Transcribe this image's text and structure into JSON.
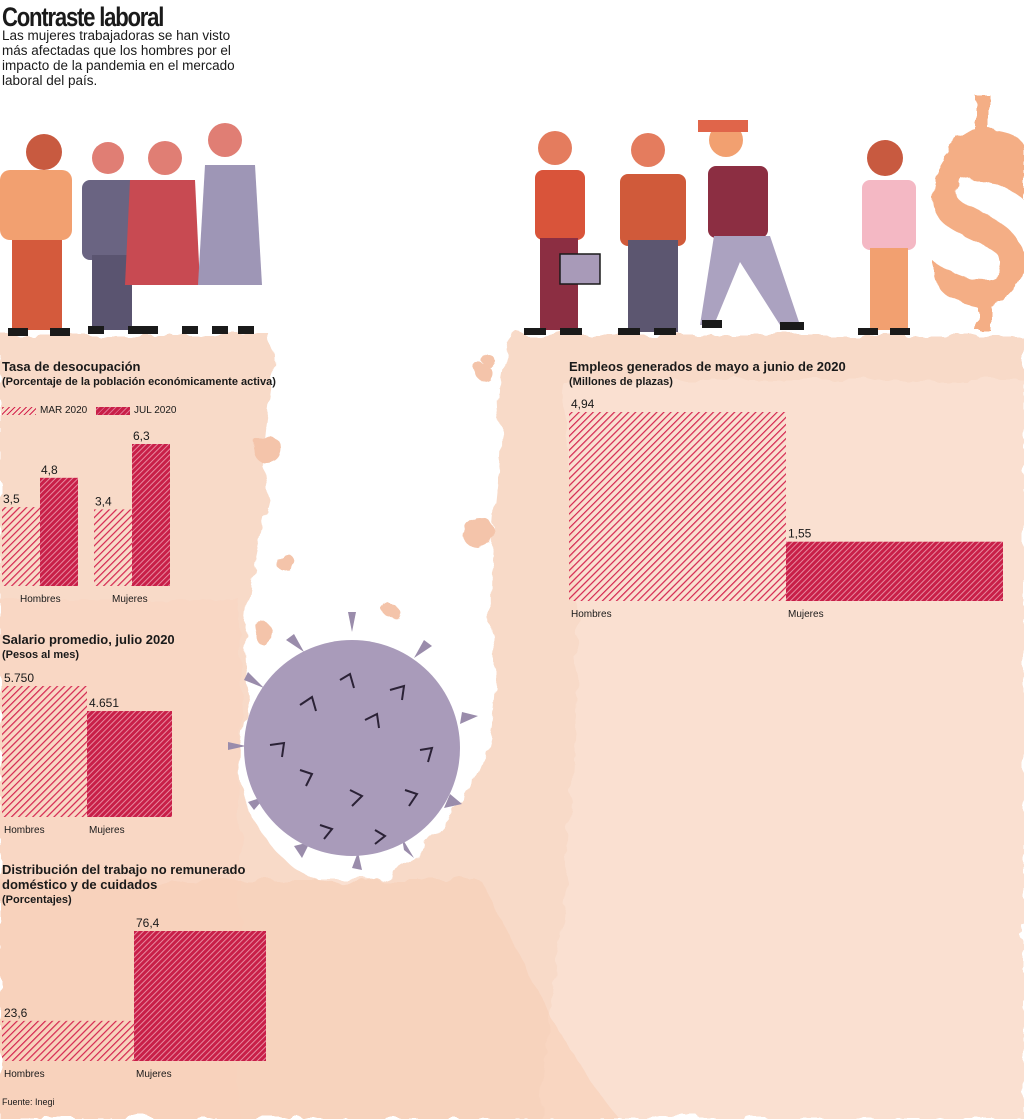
{
  "header": {
    "title": "Contraste laboral",
    "subtitle": "Las mujeres trabajadoras se han visto más afectadas que los hombres por el impacto de la pandemia en el mercado laboral del país."
  },
  "colors": {
    "accent": "#c81f48",
    "hatch": "#d4254f",
    "backdrop": "#f4c4aa",
    "virus": "#a89ab8"
  },
  "legend": {
    "mar": "MAR 2020",
    "jul": "JUL 2020"
  },
  "source": "Fuente: Inegi",
  "chart_data": [
    {
      "id": "desocupacion",
      "type": "bar",
      "title": "Tasa de desocupación",
      "subtitle": "(Porcentaje de la población económicamente activa)",
      "categories": [
        "Hombres",
        "Mujeres"
      ],
      "series": [
        {
          "name": "MAR 2020",
          "values": [
            3.5,
            3.4
          ],
          "labels": [
            "3,5",
            "3,4"
          ]
        },
        {
          "name": "JUL 2020",
          "values": [
            4.8,
            6.3
          ],
          "labels": [
            "4,8",
            "6,3"
          ]
        }
      ]
    },
    {
      "id": "salario",
      "type": "bar",
      "title": "Salario promedio, julio 2020",
      "subtitle": "(Pesos al mes)",
      "categories": [
        "Hombres",
        "Mujeres"
      ],
      "values": [
        5750,
        4651
      ],
      "labels": [
        "5.750",
        "4.651"
      ]
    },
    {
      "id": "trabajo",
      "type": "bar",
      "title": "Distribución del trabajo no remunerado doméstico y de cuidados",
      "subtitle": "(Porcentajes)",
      "categories": [
        "Hombres",
        "Mujeres"
      ],
      "values": [
        23.6,
        76.4
      ],
      "labels": [
        "23,6",
        "76,4"
      ]
    },
    {
      "id": "empleos",
      "type": "bar",
      "title": "Empleos generados de mayo a junio de 2020",
      "subtitle": "(Millones de plazas)",
      "categories": [
        "Hombres",
        "Mujeres"
      ],
      "values": [
        4.94,
        1.55
      ],
      "labels": [
        "4,94",
        "1,55"
      ]
    }
  ]
}
